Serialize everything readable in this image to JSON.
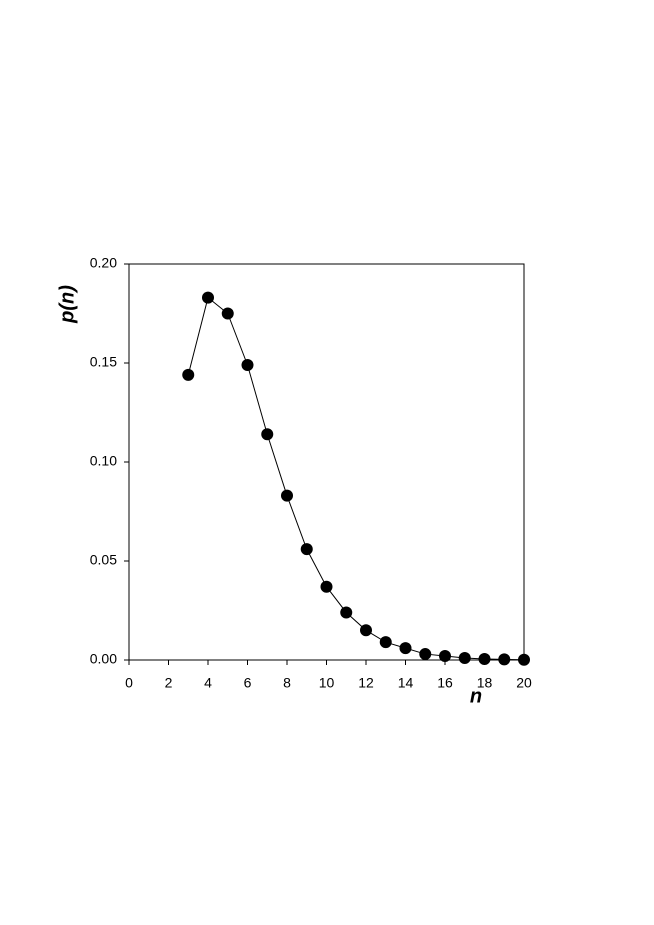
{
  "chart_data": {
    "type": "line",
    "x_label": "n",
    "y_label": "p(n)",
    "x": [
      3,
      4,
      5,
      6,
      7,
      8,
      9,
      10,
      11,
      12,
      13,
      14,
      15,
      16,
      17,
      18,
      19,
      20
    ],
    "series": [
      {
        "color": "#000000",
        "values": [
          0.144,
          0.183,
          0.175,
          0.149,
          0.114,
          0.083,
          0.056,
          0.037,
          0.024,
          0.015,
          0.009,
          0.006,
          0.003,
          0.002,
          0.001,
          0.0005,
          0.0003,
          0.0001
        ]
      }
    ],
    "xlim": [
      0,
      20
    ],
    "xticks": [
      0,
      2,
      4,
      6,
      8,
      10,
      12,
      14,
      16,
      18,
      20
    ],
    "ylim": [
      0,
      0.2
    ],
    "yticks": [
      {
        "value": 0,
        "label": "0.00"
      },
      {
        "value": 0.05,
        "label": "0.05"
      },
      {
        "value": 0.1,
        "label": "0.10"
      },
      {
        "value": 0.15,
        "label": "0.15"
      },
      {
        "value": 0.2,
        "label": "0.20"
      }
    ],
    "markers": true
  }
}
